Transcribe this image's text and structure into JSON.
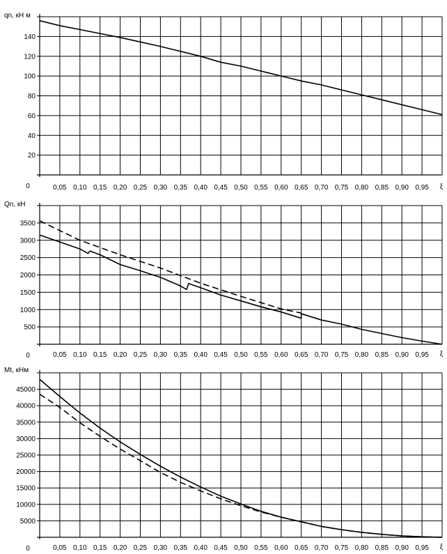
{
  "chart_data": [
    {
      "type": "line",
      "ylabel": "qn, кН м",
      "xlabel": "ξ",
      "origin_label": "0",
      "xlim": [
        0,
        1
      ],
      "ylim": [
        0,
        160
      ],
      "yticks": [
        20,
        40,
        60,
        80,
        100,
        120,
        140
      ],
      "grid": true,
      "series": [
        {
          "style": "solid",
          "points": [
            [
              0,
              156
            ],
            [
              0.05,
              151
            ],
            [
              0.1,
              147
            ],
            [
              0.15,
              143
            ],
            [
              0.2,
              139
            ],
            [
              0.25,
              134.5
            ],
            [
              0.3,
              130
            ],
            [
              0.35,
              125
            ],
            [
              0.4,
              120
            ],
            [
              0.45,
              114
            ],
            [
              0.5,
              110
            ],
            [
              0.55,
              105
            ],
            [
              0.6,
              100
            ],
            [
              0.65,
              95
            ],
            [
              0.7,
              91
            ],
            [
              0.75,
              86
            ],
            [
              0.8,
              81
            ],
            [
              0.85,
              76
            ],
            [
              0.9,
              71
            ],
            [
              0.95,
              66
            ],
            [
              1.0,
              61
            ]
          ]
        }
      ]
    },
    {
      "type": "line",
      "ylabel": "Qn, кН",
      "xlabel": "ξ",
      "origin_label": "0",
      "xlim": [
        0,
        1
      ],
      "ylim": [
        0,
        4000
      ],
      "yticks": [
        500,
        1000,
        1500,
        2000,
        2500,
        3000,
        3500
      ],
      "grid": true,
      "series": [
        {
          "style": "solid",
          "points": [
            [
              0,
              3150
            ],
            [
              0.05,
              2950
            ],
            [
              0.1,
              2750
            ],
            [
              0.12,
              2620
            ],
            [
              0.125,
              2690
            ],
            [
              0.15,
              2580
            ],
            [
              0.2,
              2300
            ],
            [
              0.25,
              2120
            ],
            [
              0.3,
              1930
            ],
            [
              0.35,
              1680
            ],
            [
              0.365,
              1580
            ],
            [
              0.37,
              1750
            ],
            [
              0.4,
              1630
            ],
            [
              0.45,
              1420
            ],
            [
              0.5,
              1250
            ],
            [
              0.55,
              1080
            ],
            [
              0.6,
              930
            ],
            [
              0.65,
              750
            ],
            [
              0.65,
              880
            ],
            [
              0.7,
              700
            ],
            [
              0.75,
              580
            ],
            [
              0.8,
              430
            ],
            [
              0.85,
              310
            ],
            [
              0.9,
              190
            ],
            [
              0.95,
              90
            ],
            [
              1.0,
              0
            ]
          ]
        },
        {
          "style": "dashed",
          "points": [
            [
              0,
              3560
            ],
            [
              0.1,
              3000
            ],
            [
              0.2,
              2580
            ],
            [
              0.3,
              2200
            ],
            [
              0.4,
              1760
            ],
            [
              0.5,
              1380
            ],
            [
              0.6,
              1020
            ],
            [
              0.65,
              900
            ]
          ]
        }
      ]
    },
    {
      "type": "line",
      "ylabel": "Mt, кНм",
      "xlabel": "ξ",
      "origin_label": "0",
      "xlim": [
        0,
        1
      ],
      "ylim": [
        0,
        50000
      ],
      "yticks": [
        5000,
        10000,
        15000,
        20000,
        25000,
        30000,
        35000,
        40000,
        45000
      ],
      "grid": true,
      "series": [
        {
          "style": "solid",
          "points": [
            [
              0,
              48000
            ],
            [
              0.05,
              42800
            ],
            [
              0.1,
              37800
            ],
            [
              0.15,
              33200
            ],
            [
              0.2,
              29000
            ],
            [
              0.25,
              25200
            ],
            [
              0.3,
              21600
            ],
            [
              0.35,
              18300
            ],
            [
              0.4,
              15300
            ],
            [
              0.45,
              12500
            ],
            [
              0.5,
              10100
            ],
            [
              0.55,
              7900
            ],
            [
              0.6,
              6100
            ],
            [
              0.65,
              4700
            ],
            [
              0.7,
              3300
            ],
            [
              0.75,
              2300
            ],
            [
              0.8,
              1500
            ],
            [
              0.85,
              900
            ],
            [
              0.9,
              400
            ],
            [
              0.95,
              150
            ],
            [
              1.0,
              0
            ]
          ]
        },
        {
          "style": "dashed",
          "points": [
            [
              0,
              43500
            ],
            [
              0.05,
              39500
            ],
            [
              0.1,
              34800
            ],
            [
              0.15,
              30700
            ],
            [
              0.2,
              26800
            ],
            [
              0.25,
              23300
            ],
            [
              0.3,
              19700
            ],
            [
              0.35,
              16700
            ],
            [
              0.4,
              14100
            ],
            [
              0.45,
              11700
            ],
            [
              0.5,
              9600
            ],
            [
              0.55,
              7700
            ],
            [
              0.6,
              6100
            ],
            [
              0.65,
              4700
            ],
            [
              0.7,
              3300
            ],
            [
              0.75,
              2300
            ],
            [
              0.8,
              1500
            ],
            [
              0.85,
              900
            ],
            [
              0.9,
              400
            ],
            [
              0.95,
              150
            ],
            [
              1.0,
              0
            ]
          ]
        }
      ]
    }
  ],
  "xticks": [
    "0,05",
    "0,10",
    "0,15",
    "0,20",
    "0,25",
    "0,30",
    "0,35",
    "0,40",
    "0,45",
    "0,50",
    "0,55",
    "0,60",
    "0,65",
    "0,70",
    "0,75",
    "0,80",
    "0,85",
    "0,90",
    "0,95"
  ]
}
